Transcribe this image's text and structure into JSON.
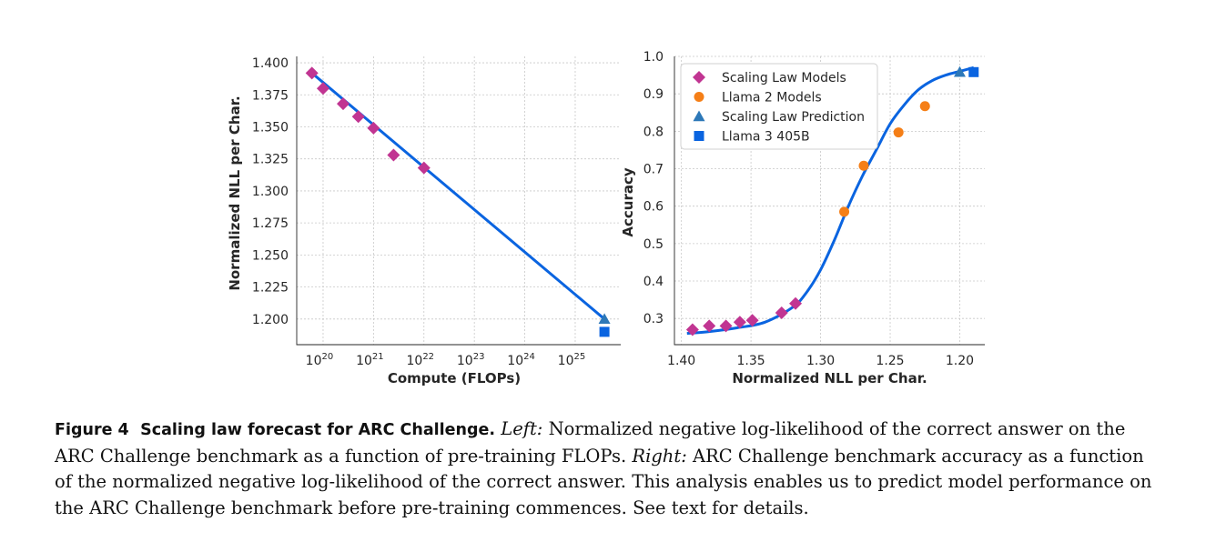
{
  "colors": {
    "scaling_law_models": "#c13592",
    "llama2_models": "#f57f17",
    "scaling_law_prediction": "#2d78b8",
    "llama3_405b": "#0a64e0",
    "fit_line": "#0a64e0"
  },
  "chart_data": [
    {
      "type": "scatter",
      "title": "",
      "xlabel": "Compute (FLOPs)",
      "ylabel": "Normalized NLL per Char.",
      "xscale": "log",
      "xlim": [
        3e+19,
        8e+25
      ],
      "ylim": [
        1.18,
        1.405
      ],
      "xticks": [
        1e+20,
        1e+21,
        1e+22,
        1e+23,
        1e+24,
        1e+25
      ],
      "xtick_labels": [
        {
          "base": "10",
          "exp": "20"
        },
        {
          "base": "10",
          "exp": "21"
        },
        {
          "base": "10",
          "exp": "22"
        },
        {
          "base": "10",
          "exp": "23"
        },
        {
          "base": "10",
          "exp": "24"
        },
        {
          "base": "10",
          "exp": "25"
        }
      ],
      "yticks": [
        1.2,
        1.225,
        1.25,
        1.275,
        1.3,
        1.325,
        1.35,
        1.375,
        1.4
      ],
      "ytick_labels": [
        "1.200",
        "1.225",
        "1.250",
        "1.275",
        "1.300",
        "1.325",
        "1.350",
        "1.375",
        "1.400"
      ],
      "grid": true,
      "fit_line": {
        "x": [
          6e+19,
          3.8e+25
        ],
        "y": [
          1.392,
          1.2
        ]
      },
      "series": [
        {
          "key": "scaling_law_models",
          "marker": "diamond",
          "x": [
            6e+19,
            1e+20,
            2.5e+20,
            5e+20,
            1e+21,
            2.5e+21,
            1e+22
          ],
          "y": [
            1.392,
            1.38,
            1.368,
            1.358,
            1.349,
            1.328,
            1.318
          ]
        },
        {
          "key": "scaling_law_prediction",
          "marker": "triangle",
          "x": [
            3.8e+25
          ],
          "y": [
            1.2
          ]
        },
        {
          "key": "llama3_405b",
          "marker": "square",
          "x": [
            3.8e+25
          ],
          "y": [
            1.19
          ]
        }
      ]
    },
    {
      "type": "scatter",
      "title": "",
      "xlabel": "Normalized NLL per Char.",
      "ylabel": "Accuracy",
      "x_inverted": true,
      "xlim": [
        1.405,
        1.182
      ],
      "ylim": [
        0.23,
        1.0
      ],
      "xticks": [
        1.4,
        1.35,
        1.3,
        1.25,
        1.2
      ],
      "xtick_labels": [
        "1.40",
        "1.35",
        "1.30",
        "1.25",
        "1.20"
      ],
      "yticks": [
        0.3,
        0.4,
        0.5,
        0.6,
        0.7,
        0.8,
        0.9,
        1.0
      ],
      "ytick_labels": [
        "0.3",
        "0.4",
        "0.5",
        "0.6",
        "0.7",
        "0.8",
        "0.9",
        "1.0"
      ],
      "grid": true,
      "legend_position": "top-left",
      "fit_curve": {
        "x": [
          1.396,
          1.38,
          1.36,
          1.34,
          1.32,
          1.31,
          1.3,
          1.29,
          1.28,
          1.27,
          1.26,
          1.25,
          1.24,
          1.23,
          1.22,
          1.21,
          1.2,
          1.19
        ],
        "y": [
          0.26,
          0.265,
          0.275,
          0.29,
          0.33,
          0.37,
          0.43,
          0.51,
          0.6,
          0.68,
          0.75,
          0.82,
          0.87,
          0.91,
          0.935,
          0.95,
          0.96,
          0.97
        ]
      },
      "series": [
        {
          "key": "scaling_law_models",
          "name": "Scaling Law Models",
          "marker": "diamond",
          "x": [
            1.392,
            1.38,
            1.368,
            1.358,
            1.349,
            1.328,
            1.318
          ],
          "y": [
            0.27,
            0.28,
            0.28,
            0.29,
            0.295,
            0.315,
            0.34
          ]
        },
        {
          "key": "llama2_models",
          "name": "Llama 2 Models",
          "marker": "circle",
          "x": [
            1.283,
            1.269,
            1.244,
            1.225
          ],
          "y": [
            0.585,
            0.708,
            0.797,
            0.867
          ]
        },
        {
          "key": "scaling_law_prediction",
          "name": "Scaling Law Prediction",
          "marker": "triangle",
          "x": [
            1.2
          ],
          "y": [
            0.958
          ]
        },
        {
          "key": "llama3_405b",
          "name": "Llama 3 405B",
          "marker": "square",
          "x": [
            1.19
          ],
          "y": [
            0.958
          ]
        }
      ]
    }
  ],
  "caption": {
    "label": "Figure 4",
    "title": "Scaling law forecast for ARC Challenge.",
    "left_label": "Left:",
    "left_text": "Normalized negative log-likelihood of the correct answer on the ARC Challenge benchmark as a function of pre-training FLOPs.",
    "right_label": "Right:",
    "right_text": "ARC Challenge benchmark accuracy as a function of the normalized negative log-likelihood of the correct answer. This analysis enables us to predict model performance on the ARC Challenge benchmark before pre-training commences. See text for details."
  }
}
